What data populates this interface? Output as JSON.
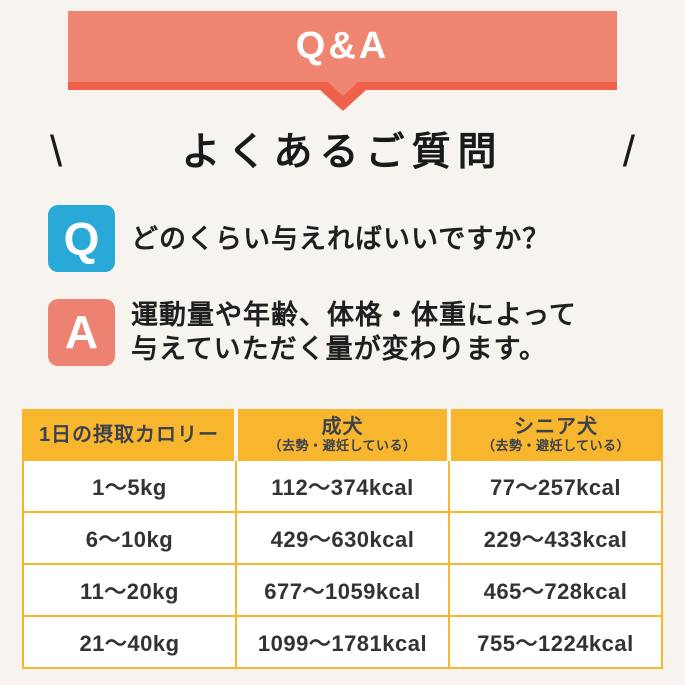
{
  "page": {
    "background_color": "#f7f4ef"
  },
  "banner": {
    "label": "Q&A",
    "body_color": "#ee8672",
    "accent_color": "#f0614b",
    "text_color": "#ffffff"
  },
  "heading": {
    "left_slash": "\\",
    "title": "よくあるご質問",
    "right_slash": "/"
  },
  "qa": {
    "q_badge": "Q",
    "q_badge_color": "#29a9d8",
    "question": "どのくらい与えればいいですか？",
    "a_badge": "A",
    "a_badge_color": "#ee8272",
    "answer_line1": "運動量や年齢、体格・体重によって",
    "answer_line2": "与えていただく量が変わります。"
  },
  "table": {
    "header_bg_color": "#f8b62e",
    "border_color": "#f8b62d",
    "columns": [
      {
        "title": "1日の摂取カロリー",
        "subtitle": ""
      },
      {
        "title": "成犬",
        "subtitle": "（去勢・避妊している）"
      },
      {
        "title": "シニア犬",
        "subtitle": "（去勢・避妊している）"
      }
    ],
    "rows": [
      [
        "1〜5kg",
        "112〜374kcal",
        "77〜257kcal"
      ],
      [
        "6〜10kg",
        "429〜630kcal",
        "229〜433kcal"
      ],
      [
        "11〜20kg",
        "677〜1059kcal",
        "465〜728kcal"
      ],
      [
        "21〜40kg",
        "1099〜1781kcal",
        "755〜1224kcal"
      ]
    ]
  },
  "chart_data": {
    "type": "table",
    "title": "1日の摂取カロリー",
    "columns": [
      "1日の摂取カロリー",
      "成犬（去勢・避妊している）",
      "シニア犬（去勢・避妊している）"
    ],
    "rows": [
      [
        "1〜5kg",
        "112〜374kcal",
        "77〜257kcal"
      ],
      [
        "6〜10kg",
        "429〜630kcal",
        "229〜433kcal"
      ],
      [
        "11〜20kg",
        "677〜1059kcal",
        "465〜728kcal"
      ],
      [
        "21〜40kg",
        "1099〜1781kcal",
        "755〜1224kcal"
      ]
    ]
  }
}
